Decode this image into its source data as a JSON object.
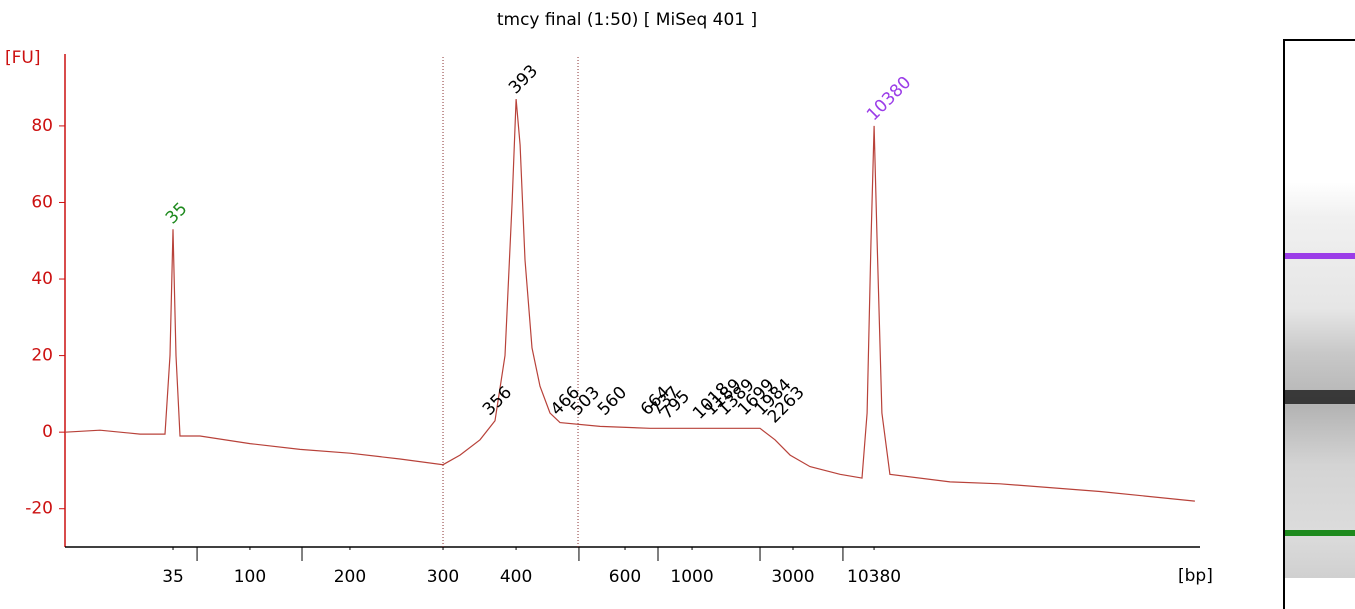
{
  "chart_data": {
    "type": "line",
    "title": "tmcy final (1:50)  [ MiSeq 401 ]",
    "y_label": "[FU]",
    "x_label": "[bp]",
    "color": "#b8423a",
    "axis_color": "#cc1111",
    "xlim": [
      40,
      125
    ],
    "ylim": [
      -30,
      98
    ],
    "yticks": [
      -20,
      0,
      20,
      40,
      60,
      80
    ],
    "xticks": [
      {
        "value": 48.09,
        "label": "35"
      },
      {
        "value": 53.85,
        "label": "100"
      },
      {
        "value": 61.34,
        "label": "200"
      },
      {
        "value": 68.31,
        "label": "300"
      },
      {
        "value": 73.78,
        "label": "400"
      },
      {
        "value": 81.94,
        "label": "600"
      },
      {
        "value": 86.96,
        "label": "1000"
      },
      {
        "value": 94.52,
        "label": "3000"
      },
      {
        "value": 100.59,
        "label": "10380"
      }
    ],
    "minor_xticks": [
      49.89,
      57.75,
      78.49,
      84.41,
      92.05,
      98.26
    ],
    "region_bounds": [
      68.31,
      78.42
    ],
    "x": [
      40.0,
      42.62,
      45.62,
      47.49,
      47.86,
      48.09,
      48.31,
      48.61,
      50.11,
      53.85,
      57.6,
      61.34,
      65.09,
      68.31,
      69.58,
      71.08,
      72.2,
      72.95,
      73.48,
      73.78,
      74.08,
      74.45,
      74.97,
      75.57,
      76.32,
      77.07,
      80.07,
      83.81,
      87.56,
      92.05,
      93.17,
      94.3,
      95.79,
      98.04,
      99.69,
      100.07,
      100.36,
      100.59,
      100.82,
      101.18,
      101.78,
      106.28,
      110.02,
      117.51,
      124.62
    ],
    "values": [
      0,
      0.5,
      -0.5,
      -0.5,
      20,
      53,
      20,
      -1,
      -1,
      -3,
      -4.5,
      -5.5,
      -7,
      -8.5,
      -6,
      -2,
      3,
      20,
      60,
      87,
      75,
      45,
      22,
      12,
      5,
      2.5,
      1.5,
      1,
      1,
      1,
      -2,
      -6,
      -9,
      -11,
      -12,
      5,
      50,
      80,
      50,
      5,
      -11,
      -13,
      -13.5,
      -15.5,
      -18
    ],
    "peaks": [
      {
        "bp": 35,
        "x": 48.09,
        "y": 53,
        "color": "#1e8a1e"
      },
      {
        "bp": 393,
        "x": 73.78,
        "y": 87,
        "color": "#000000"
      },
      {
        "bp": 10380,
        "x": 100.59,
        "y": 80,
        "color": "#9b3de8"
      },
      {
        "bp": 356,
        "x": 71.83,
        "y": 3,
        "color": "#000000"
      },
      {
        "bp": 466,
        "x": 76.92,
        "y": 3,
        "color": "#000000"
      },
      {
        "bp": 503,
        "x": 78.42,
        "y": 3,
        "color": "#000000"
      },
      {
        "bp": 560,
        "x": 80.44,
        "y": 3,
        "color": "#000000"
      },
      {
        "bp": 664,
        "x": 83.66,
        "y": 3,
        "color": "#000000"
      },
      {
        "bp": 737,
        "x": 84.41,
        "y": 3,
        "color": "#000000"
      },
      {
        "bp": 795,
        "x": 85.16,
        "y": 2,
        "color": "#000000"
      },
      {
        "bp": 1018,
        "x": 87.56,
        "y": 2,
        "color": "#000000"
      },
      {
        "bp": 1189,
        "x": 88.45,
        "y": 3,
        "color": "#000000"
      },
      {
        "bp": 1389,
        "x": 89.43,
        "y": 3,
        "color": "#000000"
      },
      {
        "bp": 1699,
        "x": 90.93,
        "y": 3,
        "color": "#000000"
      },
      {
        "bp": 1984,
        "x": 92.2,
        "y": 3,
        "color": "#000000"
      },
      {
        "bp": 2263,
        "x": 93.17,
        "y": 1,
        "color": "#000000"
      }
    ]
  }
}
